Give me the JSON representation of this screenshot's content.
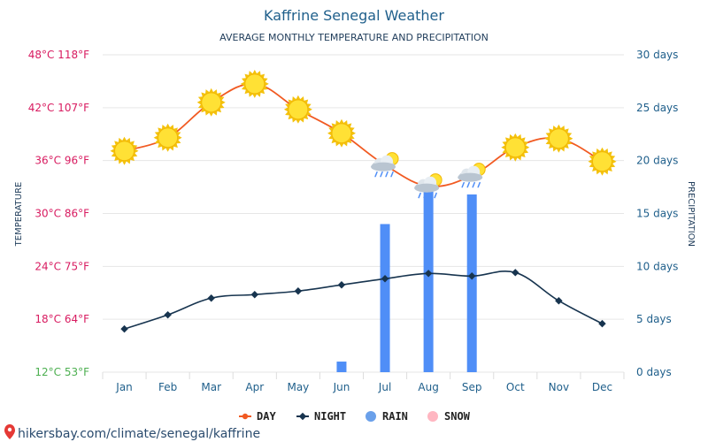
{
  "chart_data": {
    "type": "line",
    "title": "Kaffrine Senegal Weather",
    "subtitle": "AVERAGE MONTHLY TEMPERATURE AND PRECIPITATION",
    "ylabel_left": "TEMPERATURE",
    "ylabel_right": "PRECIPITATION",
    "categories": [
      "Jan",
      "Feb",
      "Mar",
      "Apr",
      "May",
      "Jun",
      "Jul",
      "Aug",
      "Sep",
      "Oct",
      "Nov",
      "Dec"
    ],
    "series": [
      {
        "name": "DAY",
        "unit": "°C",
        "values": [
          37.1,
          38.6,
          42.6,
          44.7,
          41.8,
          39.1,
          35.5,
          33.1,
          34.3,
          37.5,
          38.5,
          35.9
        ],
        "color": "#f15a22"
      },
      {
        "name": "NIGHT",
        "unit": "°C",
        "values": [
          16.9,
          18.5,
          20.4,
          20.8,
          21.2,
          21.9,
          22.6,
          23.2,
          22.9,
          23.3,
          20.1,
          17.5
        ],
        "color": "#17344f"
      },
      {
        "name": "RAIN",
        "unit": "days",
        "values": [
          0,
          0,
          0,
          0,
          0,
          1,
          14,
          17.2,
          16.8,
          0,
          0,
          0
        ],
        "color": "#4f8ef7"
      },
      {
        "name": "SNOW",
        "unit": "days",
        "values": [
          0,
          0,
          0,
          0,
          0,
          0,
          0,
          0,
          0,
          0,
          0,
          0
        ],
        "color": "#ffb6c1"
      }
    ],
    "day_icons": [
      "sun",
      "sun",
      "sun",
      "sun",
      "sun",
      "sun",
      "cloud-rain",
      "cloud-rain",
      "cloud-rain",
      "sun",
      "sun",
      "sun"
    ],
    "ylim_temp_c": [
      12,
      48
    ],
    "ylim_days": [
      0,
      30
    ],
    "left_ticks": [
      {
        "c": 48,
        "label": "48°C 118°F",
        "color": "#d81b60"
      },
      {
        "c": 42,
        "label": "42°C 107°F",
        "color": "#d81b60"
      },
      {
        "c": 36,
        "label": "36°C 96°F",
        "color": "#d81b60"
      },
      {
        "c": 30,
        "label": "30°C 86°F",
        "color": "#d81b60"
      },
      {
        "c": 24,
        "label": "24°C 75°F",
        "color": "#d81b60"
      },
      {
        "c": 18,
        "label": "18°C 64°F",
        "color": "#d81b60"
      },
      {
        "c": 12,
        "label": "12°C 53°F",
        "color": "#4caf50"
      }
    ],
    "right_ticks": [
      {
        "d": 30,
        "label": "30 days"
      },
      {
        "d": 25,
        "label": "25 days"
      },
      {
        "d": 20,
        "label": "20 days"
      },
      {
        "d": 15,
        "label": "15 days"
      },
      {
        "d": 10,
        "label": "10 days"
      },
      {
        "d": 5,
        "label": "5 days"
      },
      {
        "d": 0,
        "label": "0 days"
      }
    ],
    "grid": true,
    "legend_position": "bottom-center",
    "legend": [
      {
        "name": "DAY",
        "marker": "line-dot",
        "color": "#f15a22"
      },
      {
        "name": "NIGHT",
        "marker": "line-diamond",
        "color": "#17344f"
      },
      {
        "name": "RAIN",
        "marker": "dot",
        "color": "#6aa0ea"
      },
      {
        "name": "SNOW",
        "marker": "dot",
        "color": "#ffb6c1"
      }
    ]
  },
  "source": {
    "text": "hikersbay.com/climate/senegal/kaffrine"
  }
}
